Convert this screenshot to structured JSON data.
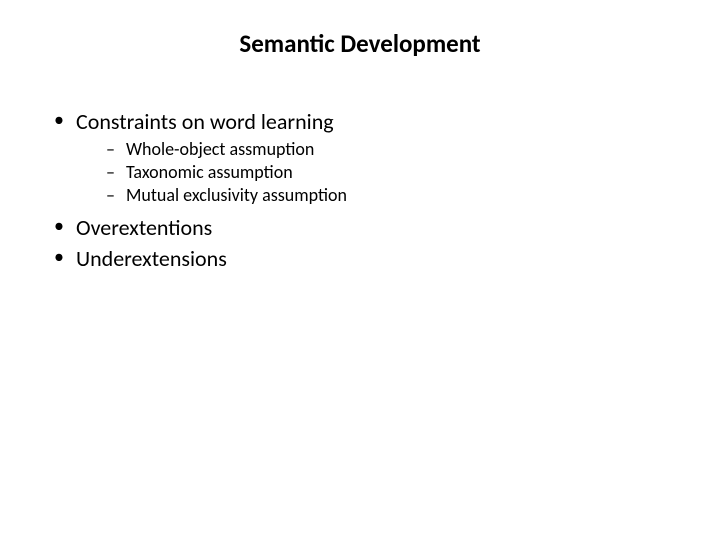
{
  "slide": {
    "title": "Semantic Development",
    "title_fontsize": 25,
    "title_weight": 700,
    "title_color": "#000000",
    "background_color": "#ffffff",
    "font_family": "Calibri",
    "bullets": {
      "level1_fontsize": 22,
      "level2_fontsize": 18,
      "level1_marker": "•",
      "level2_marker": "–",
      "text_color": "#000000",
      "items": [
        {
          "label": "Constraints on word learning",
          "children": [
            {
              "label": "Whole-object assmuption"
            },
            {
              "label": "Taxonomic assumption"
            },
            {
              "label": "Mutual exclusivity assumption"
            }
          ]
        },
        {
          "label": "Overextentions"
        },
        {
          "label": "Underextensions"
        }
      ]
    }
  }
}
